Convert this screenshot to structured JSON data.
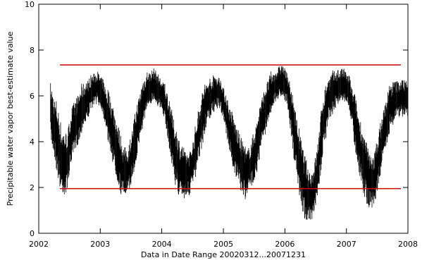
{
  "chart_data": {
    "type": "scatter",
    "title": "",
    "xlabel": "Data in Date Range 20020312...20071231",
    "ylabel": "Precipitable water vapor best-estimate value",
    "x_ticks": [
      "2002",
      "2003",
      "2004",
      "2005",
      "2006",
      "2007",
      "2008"
    ],
    "y_ticks": [
      "0",
      "2",
      "4",
      "6",
      "8",
      "10"
    ],
    "xlim": [
      "2002-01-01",
      "2008-01-01"
    ],
    "ylim": [
      0,
      10
    ],
    "grid": false,
    "reference_lines": [
      {
        "y": 7.35,
        "color": "#cc0000"
      },
      {
        "y": 1.95,
        "color": "#cc0000"
      }
    ],
    "series": [
      {
        "color": "#000000",
        "x": [
          "2002-03-12",
          "2002-04-15",
          "2002-05-15",
          "2002-06-15",
          "2002-07-15",
          "2002-08-15",
          "2002-09-15",
          "2002-10-15",
          "2002-11-15",
          "2002-12-15",
          "2003-01-15",
          "2003-02-15",
          "2003-03-15",
          "2003-04-15",
          "2003-05-15",
          "2003-06-15",
          "2003-07-15",
          "2003-08-15",
          "2003-09-15",
          "2003-10-15",
          "2003-11-15",
          "2003-12-15",
          "2004-01-15",
          "2004-02-15",
          "2004-03-15",
          "2004-04-15",
          "2004-05-15",
          "2004-06-15",
          "2004-07-15",
          "2004-08-15",
          "2004-09-15",
          "2004-10-15",
          "2004-11-15",
          "2004-12-15",
          "2005-01-15",
          "2005-02-15",
          "2005-03-15",
          "2005-04-15",
          "2005-05-15",
          "2005-06-15",
          "2005-07-15",
          "2005-08-15",
          "2005-09-15",
          "2005-10-15",
          "2005-11-15",
          "2005-12-15",
          "2006-01-15",
          "2006-02-15",
          "2006-03-15",
          "2006-04-15",
          "2006-05-15",
          "2006-06-15",
          "2006-07-15",
          "2006-08-15",
          "2006-09-15",
          "2006-10-15",
          "2006-11-15",
          "2006-12-15",
          "2007-01-15",
          "2007-02-15",
          "2007-03-15",
          "2007-04-15",
          "2007-05-15",
          "2007-06-15",
          "2007-07-15",
          "2007-08-15",
          "2007-09-15",
          "2007-10-15",
          "2007-11-15",
          "2007-12-15"
        ],
        "y": [
          5.3,
          4.3,
          3.2,
          3.0,
          4.3,
          4.8,
          5.5,
          5.8,
          6.2,
          6.4,
          6.0,
          5.2,
          4.4,
          3.5,
          2.7,
          2.7,
          3.6,
          4.8,
          5.8,
          6.3,
          6.5,
          6.2,
          5.8,
          4.8,
          3.6,
          2.8,
          2.6,
          2.6,
          3.4,
          4.6,
          5.5,
          5.9,
          6.2,
          6.1,
          5.3,
          4.3,
          3.6,
          3.0,
          2.6,
          3.0,
          3.7,
          4.8,
          5.6,
          6.2,
          6.5,
          6.7,
          6.3,
          4.9,
          3.6,
          2.4,
          1.6,
          1.6,
          2.7,
          4.8,
          5.8,
          6.2,
          6.4,
          6.5,
          6.2,
          5.1,
          4.0,
          3.0,
          2.3,
          2.3,
          3.4,
          4.5,
          5.5,
          5.8,
          5.9,
          5.9
        ],
        "spread": [
          1.1,
          1.3,
          1.2,
          1.0,
          1.0,
          0.9,
          0.8,
          0.7,
          0.6,
          0.6,
          0.7,
          1.0,
          1.1,
          1.1,
          0.9,
          0.9,
          1.0,
          0.9,
          0.8,
          0.6,
          0.6,
          0.6,
          0.8,
          1.0,
          1.1,
          1.0,
          0.8,
          0.8,
          1.0,
          1.0,
          0.8,
          0.7,
          0.6,
          0.6,
          0.8,
          1.0,
          1.0,
          1.0,
          0.8,
          0.9,
          1.0,
          0.9,
          0.8,
          0.6,
          0.6,
          0.6,
          0.8,
          1.1,
          1.2,
          1.2,
          1.0,
          1.0,
          1.1,
          1.0,
          0.8,
          0.7,
          0.6,
          0.6,
          0.7,
          1.0,
          1.1,
          1.1,
          1.0,
          1.0,
          1.0,
          0.9,
          0.8,
          0.7,
          0.7,
          0.7
        ]
      }
    ]
  }
}
